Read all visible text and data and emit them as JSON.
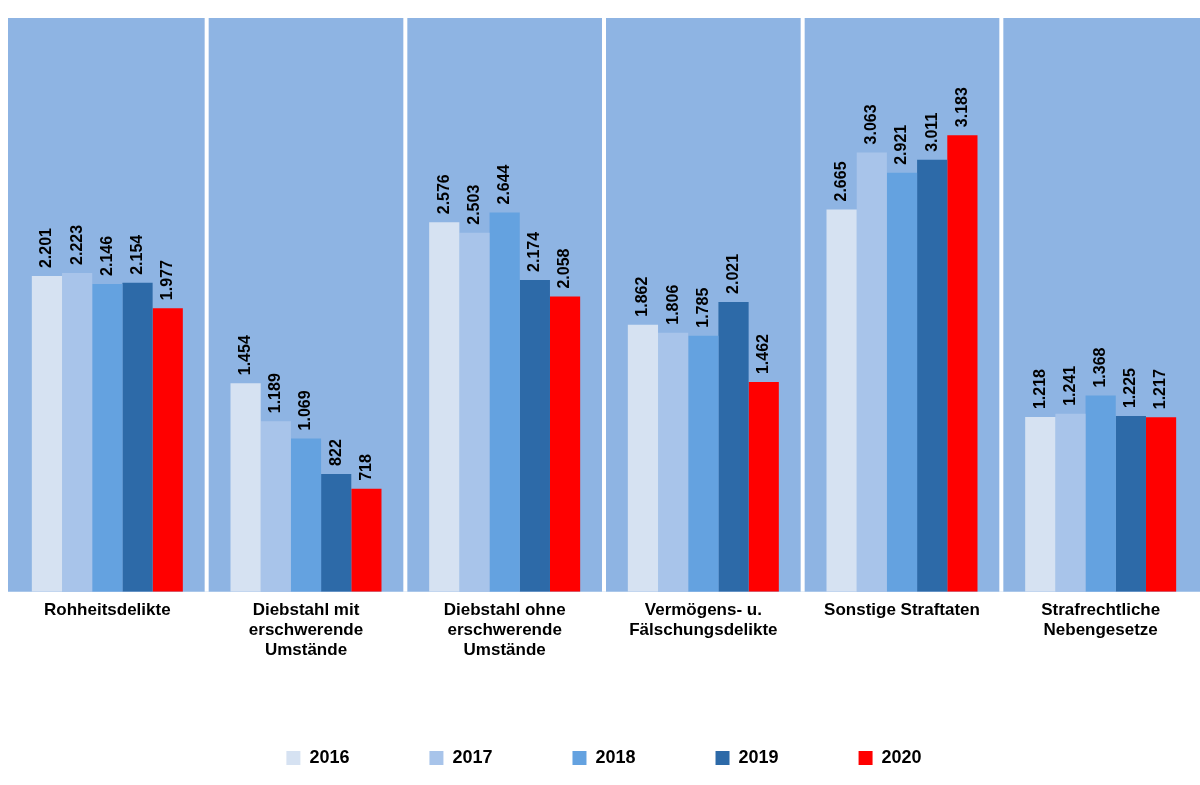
{
  "chart_data": {
    "type": "bar",
    "categories": [
      "Rohheitsdelikte",
      "Diebstahl mit erschwerende Umstände",
      "Diebstahl ohne erschwerende Umstände",
      "Vermögens- u. Fälschungsdelikte",
      "Sonstige Straftaten",
      "Strafrechtliche Nebengesetze"
    ],
    "series": [
      {
        "name": "2016",
        "color": "#d6e2f2",
        "values": [
          2201,
          1454,
          2576,
          1862,
          2665,
          1218
        ],
        "value_labels": [
          "2.201",
          "1.454",
          "2.576",
          "1.862",
          "2.665",
          "1.218"
        ]
      },
      {
        "name": "2017",
        "color": "#a8c4ea",
        "values": [
          2223,
          1189,
          2503,
          1806,
          3063,
          1241
        ],
        "value_labels": [
          "2.223",
          "1.189",
          "2.503",
          "1.806",
          "3.063",
          "1.241"
        ]
      },
      {
        "name": "2018",
        "color": "#64a2e0",
        "values": [
          2146,
          1069,
          2644,
          1785,
          2921,
          1368
        ],
        "value_labels": [
          "2.146",
          "1.069",
          "2.644",
          "1.785",
          "2.921",
          "1.368"
        ]
      },
      {
        "name": "2019",
        "color": "#2d6aa8",
        "values": [
          2154,
          822,
          2174,
          2021,
          3011,
          1225
        ],
        "value_labels": [
          "2.154",
          "822",
          "2.174",
          "2.021",
          "3.011",
          "1.225"
        ]
      },
      {
        "name": "2020",
        "color": "#ff0000",
        "values": [
          1977,
          718,
          2058,
          1462,
          3183,
          1217
        ],
        "value_labels": [
          "1.977",
          "718",
          "2.058",
          "1.462",
          "3.183",
          "1.217"
        ]
      }
    ],
    "legend": "bottom",
    "grid": false
  }
}
